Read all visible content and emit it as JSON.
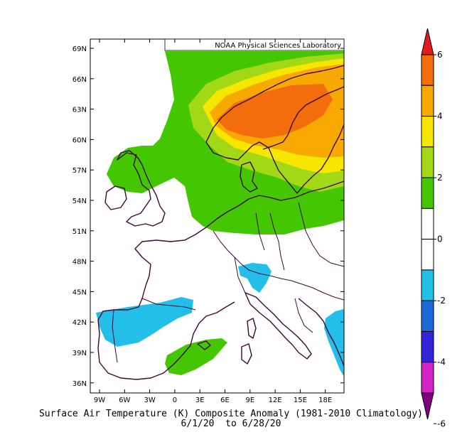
{
  "credit": "NOAA Physical Sciences Laboratory",
  "title": "Surface Air Temperature (K) Composite Anomaly (1981-2010 Climatology)",
  "date_range": "6/1/20  to 6/28/20",
  "lat_labels": [
    "69N",
    "66N",
    "63N",
    "60N",
    "57N",
    "54N",
    "51N",
    "48N",
    "45N",
    "42N",
    "39N",
    "36N"
  ],
  "lon_labels": [
    "9W",
    "6W",
    "3W",
    "0",
    "3E",
    "6E",
    "9E",
    "12E",
    "15E",
    "18E"
  ],
  "colorbar": {
    "labels": [
      "6",
      "4",
      "2",
      "0",
      "-2",
      "-4",
      "-6"
    ],
    "colors": [
      "#e41a1c",
      "#f36d0c",
      "#f8a900",
      "#f7e600",
      "#a3d817",
      "#44c700",
      "#ffffff",
      "#ffffff",
      "#23bfe8",
      "#1a6ad8",
      "#3224d8",
      "#d424c7",
      "#7f007f"
    ]
  },
  "icons": {
    "map": "coastline-map-icon"
  }
}
